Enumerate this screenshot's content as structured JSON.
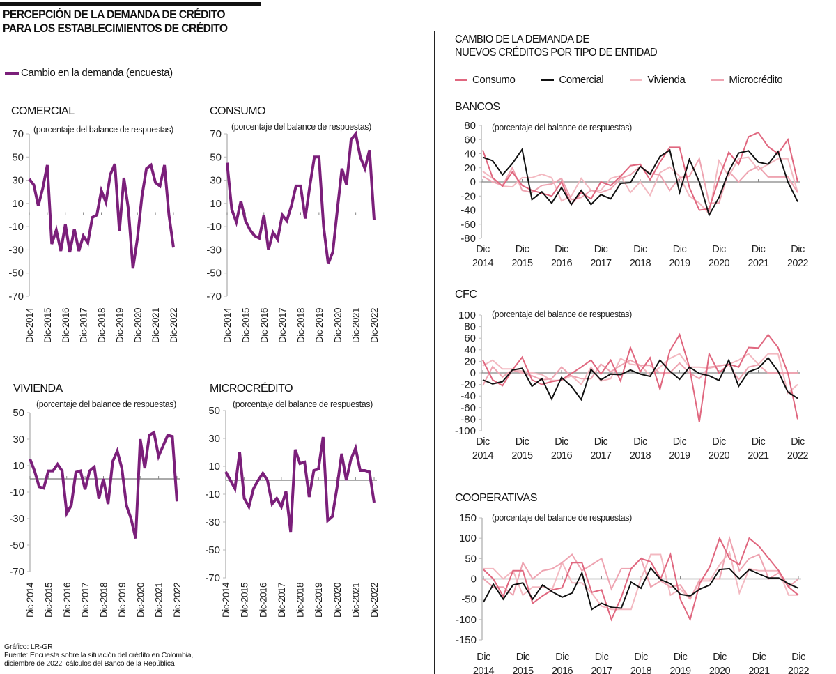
{
  "header": {
    "main_title_line1": "PERCEPCIÓN DE LA DEMANDA DE CRÉDITO",
    "main_title_line2": "PARA LOS ESTABLECIMIENTOS DE CRÉDITO",
    "left_legend": "Cambio en la demanda (encuesta)",
    "right_title_line1": "CAMBIO DE LA DEMANDA DE",
    "right_title_line2": "NUEVOS CRÉDITOS POR TIPO DE ENTIDAD",
    "right_legend": [
      "Consumo",
      "Comercial",
      "Vivienda",
      "Microcrédito"
    ]
  },
  "colors": {
    "purple": "#7b1f7a",
    "Consumo": "#e0677f",
    "Comercial": "#111111",
    "Vivienda": "#f3b9c1",
    "Microcrédito": "#eea4b1"
  },
  "footer": {
    "credit": "Gráfico: LR-GR",
    "source_line1": "Fuente: Encuesta sobre la situación del crédito en Colombia,",
    "source_line2": "diciembre de 2022; cálculos del Banco de la República"
  },
  "chart_data": [
    {
      "type": "line",
      "title": "COMERCIAL",
      "ylabel": "(porcentaje del balance de respuestas)",
      "ylim": [
        -70,
        70
      ],
      "yticks": [
        70,
        50,
        30,
        10,
        -10,
        -30,
        -50,
        -70
      ],
      "xticks": [
        "Dic-2014",
        "Dic-2015",
        "Dic-2016",
        "Dic-2017",
        "Dic-2018",
        "Dic-2019",
        "Dic-2020",
        "Dic-2021",
        "Dic-2022"
      ],
      "series": [
        {
          "name": "Cambio en la demanda (encuesta)",
          "values": [
            31,
            26,
            8,
            23,
            43,
            -25,
            -13,
            -31,
            -8,
            -32,
            -12,
            -31,
            -18,
            -24,
            -2,
            0,
            21,
            11,
            35,
            44,
            -14,
            32,
            5,
            -46,
            -20,
            16,
            40,
            43,
            28,
            25,
            43,
            0,
            -28
          ]
        }
      ]
    },
    {
      "type": "line",
      "title": "CONSUMO",
      "ylabel": "(porcentaje del balance de respuestas)",
      "ylim": [
        -70,
        70
      ],
      "yticks": [
        70,
        50,
        30,
        10,
        -10,
        -30,
        -50,
        -70
      ],
      "xticks": [
        "Dic-2014",
        "Dic-2015",
        "Dic-2016",
        "Dic-2017",
        "Dic-2018",
        "Dic-2019",
        "Dic-2020",
        "Dic-2021",
        "Dic-2022"
      ],
      "series": [
        {
          "name": "Cambio en la demanda (encuesta)",
          "values": [
            45,
            5,
            -6,
            12,
            -5,
            -13,
            -18,
            -20,
            0,
            -30,
            -15,
            -21,
            0,
            -5,
            8,
            25,
            25,
            -3,
            25,
            50,
            50,
            -10,
            -42,
            -32,
            5,
            40,
            26,
            65,
            70,
            50,
            40,
            56,
            -4
          ]
        }
      ]
    },
    {
      "type": "line",
      "title": "VIVIENDA",
      "ylabel": "(porcentaje del balance de respuestas)",
      "ylim": [
        -70,
        50
      ],
      "yticks": [
        50,
        30,
        10,
        -10,
        -30,
        -50,
        -70
      ],
      "xticks": [
        "Dic-2014",
        "Dic-2015",
        "Dic-2016",
        "Dic-2017",
        "Dic-2018",
        "Dic-2019",
        "Dic-2020",
        "Dic-2021",
        "Dic-2022"
      ],
      "series": [
        {
          "name": "Cambio en la demanda (encuesta)",
          "values": [
            15,
            6,
            -6,
            -7,
            6,
            6,
            11,
            6,
            -26,
            -20,
            5,
            6,
            -8,
            6,
            9,
            -15,
            0,
            -19,
            13,
            21,
            8,
            -20,
            -30,
            -45,
            30,
            8,
            33,
            35,
            17,
            25,
            33,
            32,
            -17
          ]
        }
      ]
    },
    {
      "type": "line",
      "title": "MICROCRÉDITO",
      "ylabel": "(porcentaje del balance de respuestas)",
      "ylim": [
        -70,
        50
      ],
      "yticks": [
        50,
        30,
        10,
        -10,
        -30,
        -50,
        -70
      ],
      "xticks": [
        "Dic-2014",
        "Dic-2015",
        "Dic-2016",
        "Dic-2017",
        "Dic-2018",
        "Dic-2019",
        "Dic-2020",
        "Dic-2021",
        "Dic-2022"
      ],
      "series": [
        {
          "name": "Cambio en la demanda (encuesta)",
          "values": [
            6,
            0,
            -6,
            20,
            -13,
            -19,
            -6,
            0,
            5,
            0,
            -17,
            -13,
            -19,
            -8,
            -37,
            22,
            12,
            13,
            -12,
            7,
            8,
            31,
            -29,
            -26,
            -5,
            19,
            0,
            15,
            23,
            7,
            7,
            6,
            -16
          ]
        }
      ]
    },
    {
      "type": "line",
      "title": "BANCOS",
      "ylabel": "(porcentaje del balance de respuestas)",
      "ylim": [
        -80,
        80
      ],
      "yticks": [
        80,
        60,
        40,
        20,
        0,
        -20,
        -40,
        -60,
        -80
      ],
      "xticks": [
        "Dic 2014",
        "Dic 2015",
        "Dic 2016",
        "Dic 2017",
        "Dic 2018",
        "Dic 2019",
        "Dic 2020",
        "Dic 2021",
        "Dic 2022"
      ],
      "series": [
        {
          "name": "Vivienda",
          "values": [
            15,
            5,
            -6,
            -7,
            6,
            6,
            11,
            6,
            -27,
            -20,
            5,
            -12,
            -12,
            5,
            9,
            -15,
            0,
            -19,
            13,
            21,
            8,
            -20,
            -30,
            -45,
            30,
            8,
            33,
            35,
            17,
            25,
            33,
            33,
            -15
          ]
        },
        {
          "name": "Microcrédito",
          "values": [
            8,
            0,
            -5,
            20,
            -12,
            -15,
            -5,
            -3,
            5,
            -25,
            -22,
            -12,
            -15,
            -10,
            5,
            10,
            22,
            12,
            10,
            -12,
            6,
            8,
            33,
            -30,
            -30,
            15,
            0,
            15,
            22,
            7,
            7,
            7,
            -15
          ]
        },
        {
          "name": "Consumo",
          "values": [
            45,
            6,
            -6,
            14,
            -5,
            -12,
            -16,
            -20,
            0,
            -32,
            -15,
            -24,
            0,
            -5,
            8,
            23,
            25,
            3,
            28,
            49,
            49,
            -8,
            -40,
            -38,
            5,
            42,
            25,
            64,
            70,
            50,
            40,
            60,
            0
          ]
        },
        {
          "name": "Comercial",
          "values": [
            35,
            30,
            10,
            26,
            46,
            -25,
            -14,
            -30,
            -8,
            -32,
            -12,
            -32,
            -18,
            -24,
            -2,
            -1,
            22,
            11,
            36,
            45,
            -15,
            32,
            0,
            -47,
            -22,
            15,
            41,
            44,
            28,
            25,
            43,
            0,
            -28
          ]
        }
      ]
    },
    {
      "type": "line",
      "title": "CFC",
      "ylabel": "(porcentaje del balance de respuestas)",
      "ylim": [
        -100,
        100
      ],
      "yticks": [
        100,
        80,
        60,
        40,
        20,
        0,
        -20,
        -40,
        -60,
        -80,
        -100
      ],
      "xticks": [
        "Dic 2014",
        "Dic 2015",
        "Dic 2016",
        "Dic 2017",
        "Dic 2018",
        "Dic 2019",
        "Dic 2020",
        "Dic 2021",
        "Dic 2022"
      ],
      "series": [
        {
          "name": "Vivienda",
          "values": [
            12,
            22,
            7,
            7,
            3,
            0,
            -3,
            -13,
            -13,
            -5,
            -20,
            10,
            -14,
            -10,
            25,
            15,
            13,
            -4,
            10,
            25,
            33,
            10,
            10,
            8,
            12,
            15,
            22,
            33,
            15,
            33,
            33,
            -35,
            -20
          ]
        },
        {
          "name": "Microcrédito",
          "values": [
            -22,
            11,
            -7,
            5,
            0,
            -5,
            -12,
            -10,
            10,
            -5,
            -10,
            -10,
            15,
            2,
            13,
            22,
            13,
            13,
            0,
            0,
            17,
            0,
            -10,
            10,
            12,
            15,
            -12,
            10,
            14,
            0,
            0,
            0,
            0
          ]
        },
        {
          "name": "Consumo",
          "values": [
            22,
            -12,
            -22,
            5,
            27,
            -12,
            -20,
            -15,
            -12,
            -1,
            10,
            22,
            -2,
            22,
            -14,
            44,
            2,
            26,
            -28,
            38,
            66,
            10,
            -85,
            33,
            0,
            15,
            10,
            44,
            43,
            66,
            44,
            0,
            -80
          ]
        },
        {
          "name": "Comercial",
          "values": [
            -12,
            -19,
            -15,
            5,
            8,
            -23,
            -10,
            -45,
            -8,
            -23,
            -46,
            6,
            -12,
            -2,
            -3,
            5,
            -2,
            -6,
            22,
            3,
            -11,
            10,
            -1,
            -5,
            -13,
            22,
            -23,
            2,
            8,
            26,
            3,
            -33,
            -44
          ]
        }
      ]
    },
    {
      "type": "line",
      "title": "COOPERATIVAS",
      "ylabel": "(porcentaje del balance de respuestas)",
      "ylim": [
        -150,
        150
      ],
      "yticks": [
        150,
        100,
        50,
        0,
        -50,
        -100,
        -150
      ],
      "xticks": [
        "Dic 2014",
        "Dic 2015",
        "Dic 2016",
        "Dic 2017",
        "Dic 2018",
        "Dic 2019",
        "Dic 2020",
        "Dic 2021",
        "Dic 2022"
      ],
      "series": [
        {
          "name": "Vivienda",
          "values": [
            25,
            25,
            0,
            20,
            -40,
            -20,
            -20,
            -25,
            40,
            -10,
            -10,
            -35,
            -67,
            -75,
            -75,
            -75,
            0,
            60,
            60,
            -40,
            -25,
            -50,
            -5,
            -5,
            35,
            65,
            -35,
            25,
            20,
            20,
            20,
            -40,
            -40
          ]
        },
        {
          "name": "Microcrédito",
          "values": [
            0,
            -20,
            -20,
            -40,
            40,
            0,
            20,
            25,
            40,
            60,
            20,
            35,
            50,
            -25,
            25,
            25,
            50,
            -20,
            -5,
            -20,
            -15,
            -50,
            0,
            0,
            0,
            100,
            20,
            50,
            60,
            0,
            15,
            -20,
            0
          ]
        },
        {
          "name": "Consumo",
          "values": [
            23,
            0,
            -43,
            20,
            20,
            -60,
            -42,
            -27,
            -22,
            40,
            40,
            -33,
            -27,
            -100,
            -45,
            25,
            50,
            42,
            0,
            60,
            -50,
            -100,
            -10,
            30,
            100,
            50,
            35,
            100,
            80,
            50,
            20,
            -20,
            -40
          ]
        },
        {
          "name": "Comercial",
          "values": [
            -57,
            -13,
            -50,
            -15,
            -10,
            -50,
            -15,
            -32,
            -45,
            -35,
            15,
            -75,
            -60,
            -70,
            -72,
            -8,
            -23,
            27,
            -2,
            -12,
            -38,
            -42,
            -25,
            -15,
            23,
            25,
            0,
            23,
            12,
            2,
            2,
            -12,
            -23
          ]
        }
      ]
    }
  ]
}
